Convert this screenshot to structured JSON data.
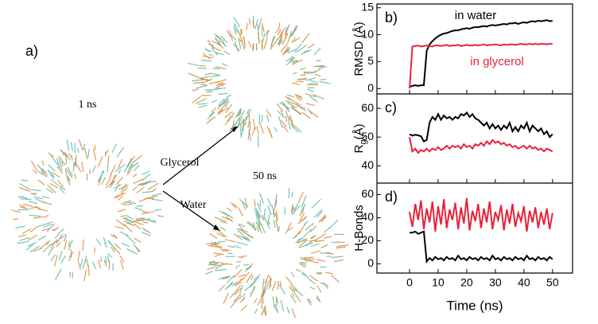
{
  "panel_a": {
    "label": "a)",
    "time_start": "1 ns",
    "solvent_1": "Glycerol",
    "solvent_2": "Water",
    "time_end": "50 ns"
  },
  "x_label": "Time (ns)",
  "chart_data": [
    {
      "type": "line",
      "panel_label": "b)",
      "y_label": "RMSD (Å)",
      "xlim": [
        -11.4,
        57
      ],
      "xticks": [
        0,
        10,
        20,
        30,
        40,
        50
      ],
      "ylim": [
        -1,
        15.7
      ],
      "yticks": [
        0,
        5,
        10,
        15
      ],
      "annotations": [
        {
          "text": "in water",
          "color": "#000000"
        },
        {
          "text": "in glycerol",
          "color": "#e8233a"
        }
      ],
      "x": [
        0,
        1,
        2,
        3,
        4,
        5,
        6,
        7,
        8,
        9,
        10,
        11,
        12,
        13,
        14,
        15,
        16,
        17,
        18,
        19,
        20,
        21,
        22,
        23,
        24,
        25,
        26,
        27,
        28,
        29,
        30,
        31,
        32,
        33,
        34,
        35,
        36,
        37,
        38,
        39,
        40,
        41,
        42,
        43,
        44,
        45,
        46,
        47,
        48,
        49,
        50
      ],
      "series": [
        {
          "name": "in water",
          "color": "#000000",
          "values": [
            0.3,
            0.5,
            0.6,
            0.5,
            0.6,
            0.6,
            7,
            8.2,
            8.8,
            9.3,
            9.7,
            10,
            10.2,
            10.3,
            10.5,
            10.7,
            10.8,
            10.8,
            11,
            11.1,
            11.2,
            11.1,
            11.3,
            11.4,
            11.4,
            11.5,
            11.6,
            11.5,
            11.7,
            11.8,
            11.7,
            11.8,
            11.9,
            12,
            11.9,
            12.1,
            12.1,
            12.2,
            12,
            12.2,
            12.3,
            12.2,
            12.4,
            12.5,
            12.4,
            12.6,
            12.5,
            12.6,
            12.7,
            12.5,
            12.6
          ]
        },
        {
          "name": "in glycerol",
          "color": "#e8233a",
          "values": [
            0,
            7.8,
            7.9,
            8,
            7.8,
            7.9,
            8,
            7.9,
            7.8,
            8,
            8,
            7.9,
            8,
            8.1,
            7.9,
            8,
            8,
            8.1,
            7.9,
            8,
            8.1,
            8,
            8,
            8.1,
            8,
            8.1,
            8.2,
            8,
            8.1,
            8.1,
            8.2,
            8.1,
            8,
            8.2,
            8.1,
            8.2,
            8.2,
            8.1,
            8.2,
            8.3,
            8.2,
            8.2,
            8.3,
            8.2,
            8.3,
            8.2,
            8.3,
            8.3,
            8.2,
            8.3,
            8.3
          ]
        }
      ]
    },
    {
      "type": "line",
      "panel_label": "c)",
      "y_label": "R",
      "y_label_sub": "g",
      "y_label_unit": "(Å)",
      "xlim": [
        -11.4,
        57
      ],
      "xticks": [
        0,
        10,
        20,
        30,
        40,
        50
      ],
      "ylim": [
        34,
        65
      ],
      "yticks": [
        40,
        50,
        60
      ],
      "x": [
        0,
        1,
        2,
        3,
        4,
        5,
        6,
        7,
        8,
        9,
        10,
        11,
        12,
        13,
        14,
        15,
        16,
        17,
        18,
        19,
        20,
        21,
        22,
        23,
        24,
        25,
        26,
        27,
        28,
        29,
        30,
        31,
        32,
        33,
        34,
        35,
        36,
        37,
        38,
        39,
        40,
        41,
        42,
        43,
        44,
        45,
        46,
        47,
        48,
        49,
        50
      ],
      "series": [
        {
          "color": "#000000",
          "values": [
            51,
            50.5,
            50.8,
            50.6,
            50.3,
            48.5,
            49,
            55,
            57,
            56,
            58,
            56,
            57.5,
            56.5,
            57,
            56,
            57,
            56.5,
            58,
            57.5,
            58.5,
            57,
            58,
            56.5,
            56,
            55,
            54,
            55,
            53,
            54.5,
            53,
            54,
            52.5,
            54,
            53,
            55,
            52,
            53.5,
            52,
            54,
            53,
            55,
            52,
            54,
            53,
            52,
            53,
            51,
            52,
            50,
            51
          ]
        },
        {
          "color": "#e8233a",
          "values": [
            50,
            45,
            46,
            44.5,
            45.5,
            45,
            46,
            45,
            46,
            45.5,
            46.5,
            45.5,
            46,
            47,
            46,
            47,
            46.5,
            47,
            46,
            47.5,
            46.5,
            47,
            46,
            47.5,
            47,
            48,
            47,
            48.5,
            47.5,
            49,
            48,
            48.5,
            47.5,
            48,
            47,
            47.5,
            46.5,
            47,
            46,
            46.5,
            47,
            46,
            47,
            46,
            46.5,
            45.5,
            46,
            45,
            46,
            45.5,
            45
          ]
        }
      ]
    },
    {
      "type": "line",
      "panel_label": "d)",
      "y_label": "H-Bonds",
      "xlim": [
        -11.4,
        57
      ],
      "xticks": [
        0,
        10,
        20,
        30,
        40,
        50
      ],
      "ylim": [
        -8,
        70
      ],
      "yticks": [
        0,
        20,
        40,
        60
      ],
      "x": [
        0,
        1,
        2,
        3,
        4,
        5,
        6,
        7,
        8,
        9,
        10,
        11,
        12,
        13,
        14,
        15,
        16,
        17,
        18,
        19,
        20,
        21,
        22,
        23,
        24,
        25,
        26,
        27,
        28,
        29,
        30,
        31,
        32,
        33,
        34,
        35,
        36,
        37,
        38,
        39,
        40,
        41,
        42,
        43,
        44,
        45,
        46,
        47,
        48,
        49,
        50
      ],
      "series": [
        {
          "color": "#e8233a",
          "values": [
            45,
            32,
            52,
            38,
            55,
            30,
            48,
            36,
            54,
            28,
            50,
            34,
            56,
            31,
            47,
            38,
            53,
            30,
            49,
            35,
            57,
            29,
            46,
            37,
            52,
            31,
            48,
            36,
            54,
            30,
            45,
            38,
            51,
            29,
            47,
            35,
            52,
            32,
            44,
            37,
            50,
            28,
            46,
            36,
            49,
            31,
            45,
            34,
            48,
            30,
            44
          ]
        },
        {
          "color": "#000000",
          "values": [
            27,
            27,
            28,
            26,
            27,
            28,
            2,
            5,
            3,
            6,
            4,
            5,
            3,
            6,
            4,
            5,
            3,
            7,
            4,
            5,
            3,
            6,
            4,
            5,
            3,
            6,
            4,
            5,
            3,
            7,
            4,
            5,
            3,
            6,
            4,
            5,
            3,
            6,
            4,
            5,
            3,
            7,
            4,
            5,
            3,
            6,
            4,
            5,
            3,
            6,
            4
          ]
        }
      ]
    }
  ]
}
